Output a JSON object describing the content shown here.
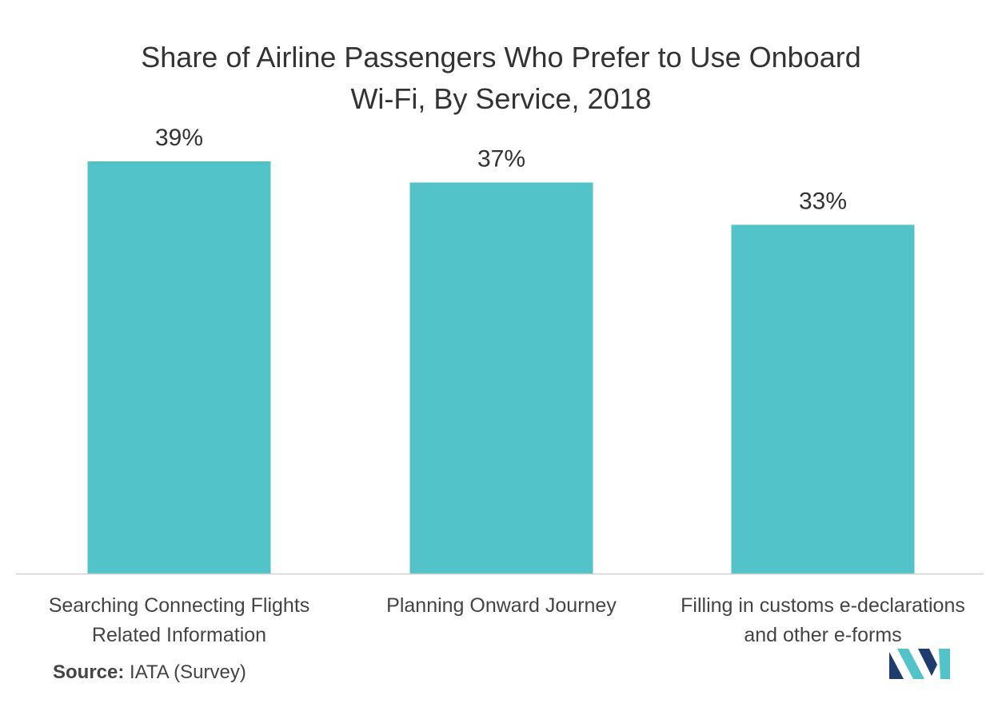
{
  "chart_data": {
    "type": "bar",
    "title_lines": [
      "Share of Airline Passengers Who Prefer to Use Onboard",
      "Wi-Fi, By Service, 2018"
    ],
    "categories": [
      [
        "Searching Connecting Flights",
        "Related Information"
      ],
      [
        "Planning Onward Journey"
      ],
      [
        "Filling in customs e-declarations",
        "and other e-forms"
      ]
    ],
    "values": [
      39,
      37,
      33
    ],
    "data_labels": [
      "39%",
      "37%",
      "33%"
    ],
    "value_unit": "%",
    "xlabel": "",
    "ylabel": "",
    "ylim": [
      0,
      39
    ],
    "grid": false,
    "legend": "none",
    "bar_color": "#52c3c9",
    "axis_color": "#d0d0d0"
  },
  "source": {
    "prefix": "Source:",
    "text": " IATA (Survey)"
  },
  "logo": {
    "colors": [
      "#1f3c6e",
      "#52c3c9"
    ]
  }
}
